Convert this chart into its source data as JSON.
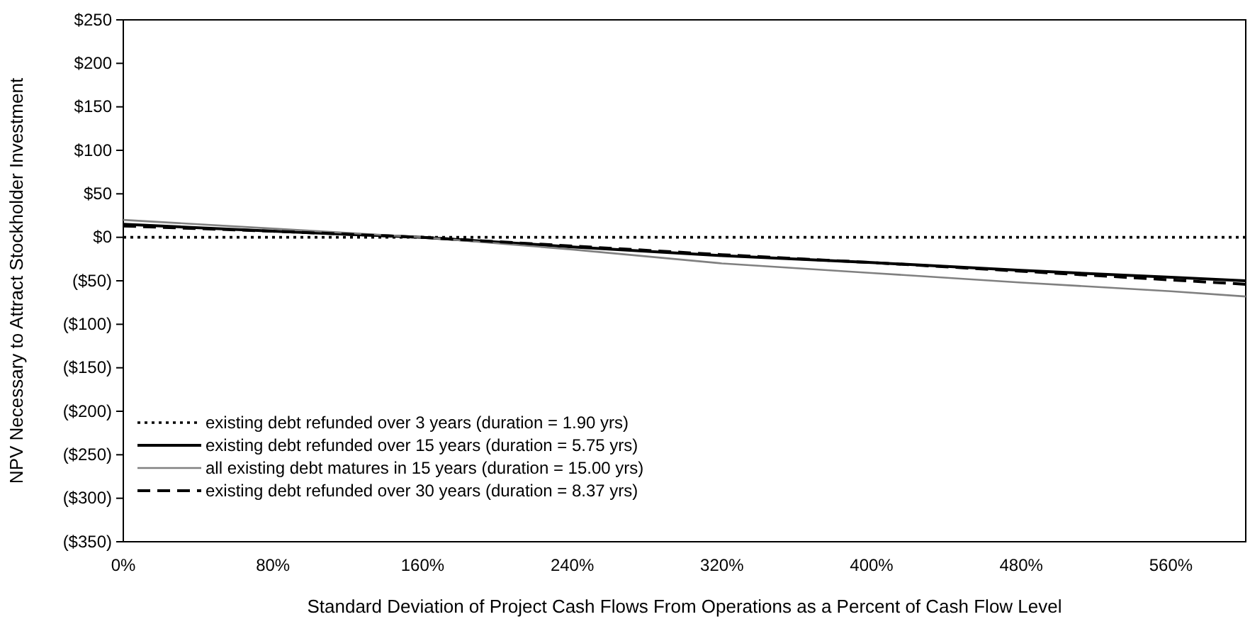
{
  "chart_data": {
    "type": "line",
    "xlabel": "Standard Deviation of Project Cash Flows From Operations as a Percent of Cash Flow Level",
    "ylabel": "NPV Necessary to Attract Stockholder Investment",
    "x": [
      0,
      80,
      160,
      240,
      320,
      400,
      480,
      560,
      600
    ],
    "series": [
      {
        "name": "existing debt refunded over 3 years (duration = 1.90 yrs)",
        "color": "#000000",
        "line_style": "dotted",
        "values": [
          0,
          0,
          0,
          0,
          0,
          0,
          0,
          0,
          0
        ]
      },
      {
        "name": "existing debt refunded over 15 years (duration = 5.75 yrs)",
        "color": "#000000",
        "line_style": "solid",
        "values": [
          15,
          7,
          0,
          -11,
          -21,
          -29,
          -38,
          -46,
          -50
        ]
      },
      {
        "name": "all existing debt matures in 15 years (duration = 15.00 yrs)",
        "color": "#808080",
        "line_style": "solid",
        "values": [
          20,
          10,
          0,
          -14,
          -30,
          -41,
          -52,
          -62,
          -68
        ]
      },
      {
        "name": "existing debt refunded over 30 years (duration = 8.37 yrs)",
        "color": "#000000",
        "line_style": "dashed",
        "values": [
          13,
          7,
          0,
          -10,
          -20,
          -29,
          -39,
          -49,
          -54
        ]
      }
    ],
    "xlim": [
      0,
      600
    ],
    "xticks": [
      {
        "value": 0,
        "label": "0%"
      },
      {
        "value": 80,
        "label": "80%"
      },
      {
        "value": 160,
        "label": "160%"
      },
      {
        "value": 240,
        "label": "240%"
      },
      {
        "value": 320,
        "label": "320%"
      },
      {
        "value": 400,
        "label": "400%"
      },
      {
        "value": 480,
        "label": "480%"
      },
      {
        "value": 560,
        "label": "560%"
      }
    ],
    "ylim": [
      -350,
      250
    ],
    "yticks": [
      {
        "value": 250,
        "label": "$250"
      },
      {
        "value": 200,
        "label": "$200"
      },
      {
        "value": 150,
        "label": "$150"
      },
      {
        "value": 100,
        "label": "$100"
      },
      {
        "value": 50,
        "label": "$50"
      },
      {
        "value": 0,
        "label": "$0"
      },
      {
        "value": -50,
        "label": "($50)"
      },
      {
        "value": -100,
        "label": "($100)"
      },
      {
        "value": -150,
        "label": "($150)"
      },
      {
        "value": -200,
        "label": "($200)"
      },
      {
        "value": -250,
        "label": "($250)"
      },
      {
        "value": -300,
        "label": "($300)"
      },
      {
        "value": -350,
        "label": "($350)"
      }
    ],
    "legend": "bottom left",
    "marker": "none"
  }
}
